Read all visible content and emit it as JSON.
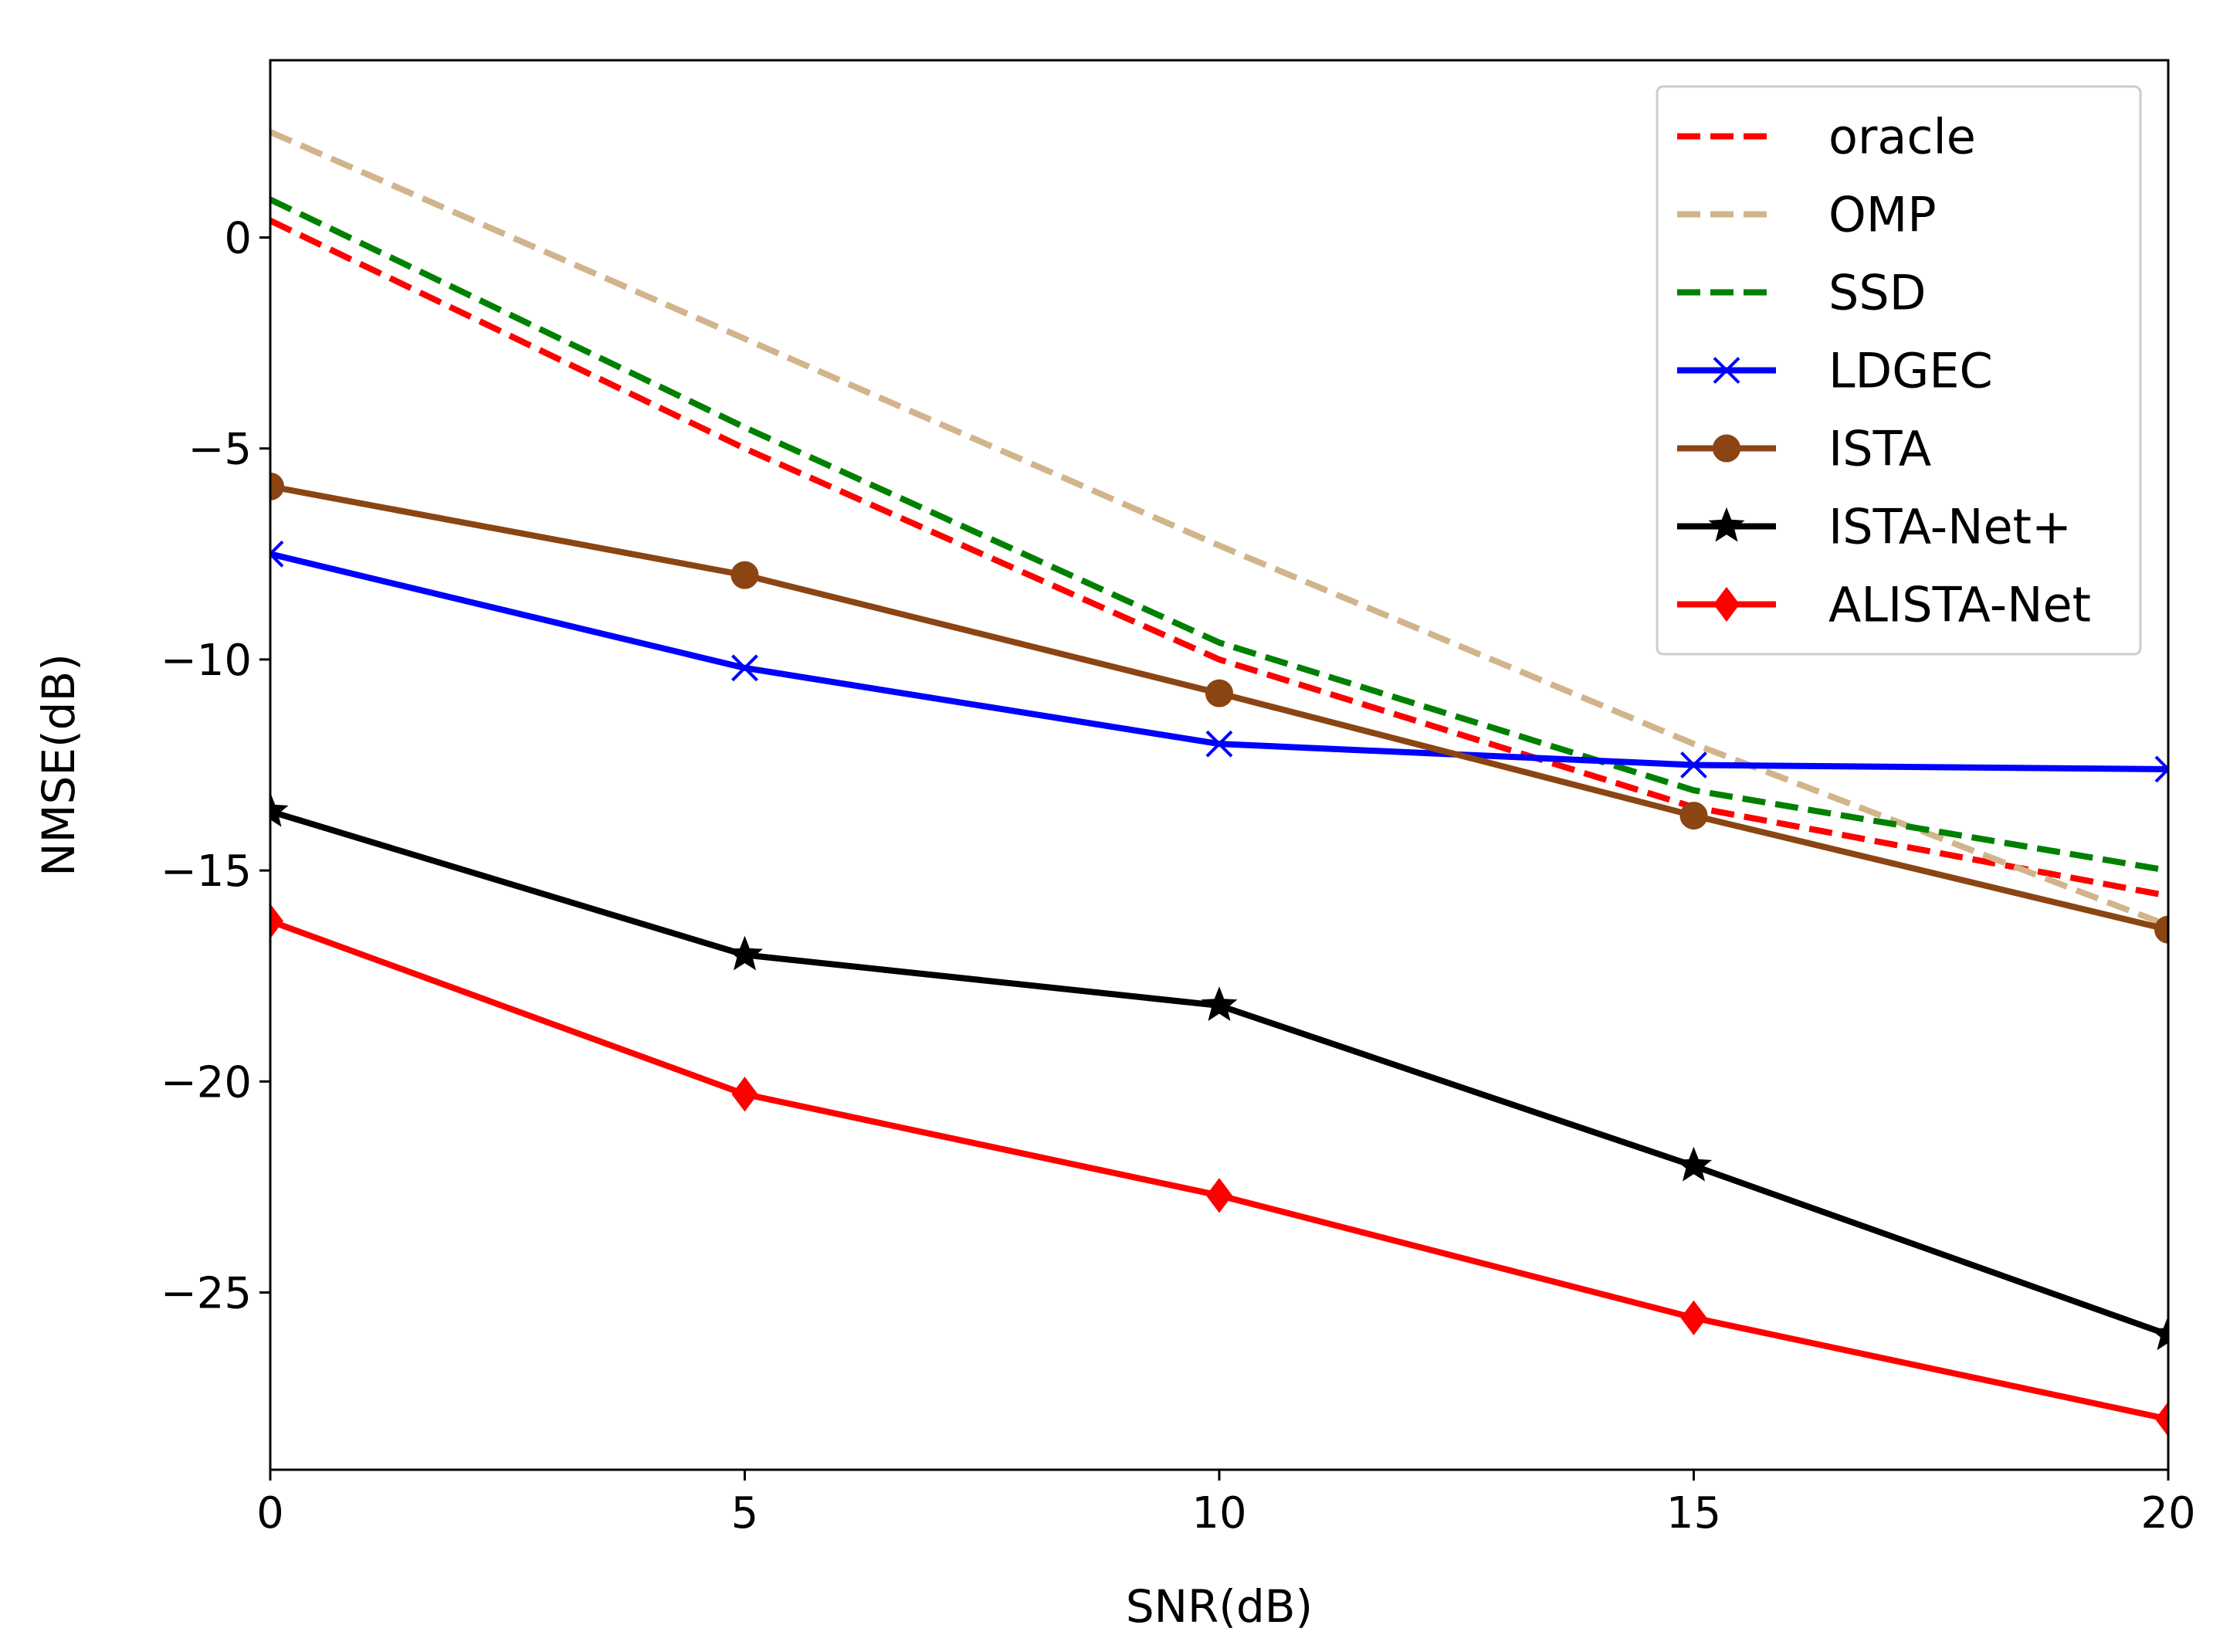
{
  "chart_data": {
    "type": "line",
    "title": "",
    "xlabel": "SNR(dB)",
    "ylabel": "NMSE(dB)",
    "xlim": [
      0,
      20
    ],
    "ylim": [
      -29.2,
      4.2
    ],
    "xticks": [
      0,
      5,
      10,
      15,
      20
    ],
    "xtick_labels": [
      "0",
      "5",
      "10",
      "15",
      "20"
    ],
    "yticks": [
      0,
      -5,
      -10,
      -15,
      -20,
      -25
    ],
    "ytick_labels": [
      "0",
      "−5",
      "−10",
      "−15",
      "−20",
      "−25"
    ],
    "grid": false,
    "legend_position": "top-right",
    "x": [
      0,
      5,
      10,
      15,
      20
    ],
    "series": [
      {
        "name": "oracle",
        "values": [
          0.4,
          -5.0,
          -10.0,
          -13.5,
          -15.6
        ],
        "color": "#ff0000",
        "dash": "dashed",
        "marker": "none"
      },
      {
        "name": "OMP",
        "values": [
          2.5,
          -2.4,
          -7.3,
          -12.0,
          -16.3
        ],
        "color": "#d2b48c",
        "dash": "dashed",
        "marker": "none"
      },
      {
        "name": "SSD",
        "values": [
          0.9,
          -4.5,
          -9.6,
          -13.1,
          -15.0
        ],
        "color": "#008000",
        "dash": "dashed",
        "marker": "none"
      },
      {
        "name": "LDGEC",
        "values": [
          -7.5,
          -10.2,
          -12.0,
          -12.5,
          -12.6
        ],
        "color": "#0000ff",
        "dash": "solid",
        "marker": "x"
      },
      {
        "name": "ISTA",
        "values": [
          -5.9,
          -8.0,
          -10.8,
          -13.7,
          -16.4
        ],
        "color": "#8b4513",
        "dash": "solid",
        "marker": "circle"
      },
      {
        "name": "ISTA-Net+",
        "values": [
          -13.6,
          -17.0,
          -18.2,
          -22.0,
          -26.0
        ],
        "color": "#000000",
        "dash": "solid",
        "marker": "star"
      },
      {
        "name": "ALISTA-Net",
        "values": [
          -16.2,
          -20.3,
          -22.7,
          -25.6,
          -28.0
        ],
        "color": "#ff0000",
        "dash": "solid",
        "marker": "diamond"
      }
    ]
  }
}
